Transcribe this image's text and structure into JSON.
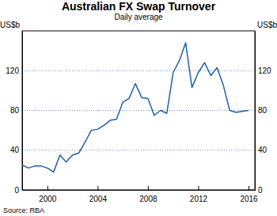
{
  "chart_data": {
    "type": "line",
    "title": "Australian FX Swap Turnover",
    "subtitle": "Daily average",
    "y_label": "US$b",
    "source": "Source: RBA",
    "x": [
      1998,
      1998.5,
      1999,
      1999.5,
      2000,
      2000.5,
      2001,
      2001.5,
      2002,
      2002.5,
      2003,
      2003.5,
      2004,
      2004.5,
      2005,
      2005.5,
      2006,
      2006.5,
      2007,
      2007.5,
      2008,
      2008.5,
      2009,
      2009.5,
      2010,
      2010.5,
      2011,
      2011.5,
      2012,
      2012.5,
      2013,
      2013.5,
      2014,
      2014.5,
      2015,
      2015.5,
      2016
    ],
    "values": [
      25,
      22,
      24,
      24,
      22,
      18,
      35,
      28,
      35,
      37,
      48,
      60,
      61,
      65,
      70,
      71,
      88,
      92,
      107,
      93,
      92,
      75,
      80,
      77,
      118,
      130,
      148,
      103,
      118,
      128,
      115,
      123,
      105,
      80,
      78,
      79,
      80
    ],
    "color": "#1f5fae",
    "xlim": [
      1998,
      2016.5
    ],
    "xticks": [
      2000,
      2004,
      2008,
      2012,
      2016
    ],
    "ylim": [
      0,
      160
    ],
    "yticks": [
      0,
      40,
      80,
      120
    ],
    "grid": true
  }
}
